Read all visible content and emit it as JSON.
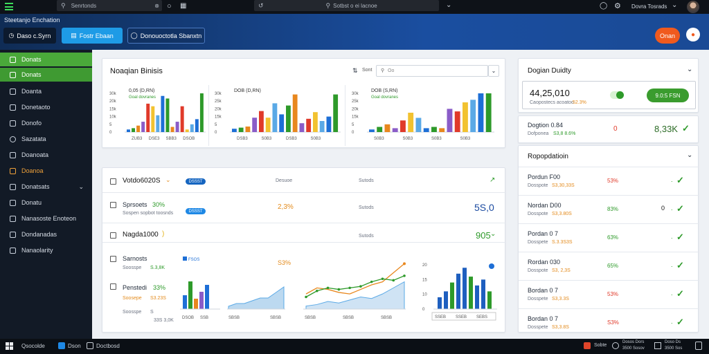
{
  "topbar": {
    "search_placeholder": "Senrtonds",
    "center_search_placeholder": "Sotbst o ei lacnoe",
    "user_name": "Dovra Tosrads"
  },
  "band": {
    "title": "Steetanjo Enchation",
    "btn_dark": "Daso c.Syrn",
    "btn_blue": "Fostr Ebaan",
    "btn_outline": "Donouoctotla Sbanxtn",
    "btn_orange": "Onan"
  },
  "sidebar": {
    "items": [
      {
        "label": "Donats"
      },
      {
        "label": "Donats"
      },
      {
        "label": "Doanta"
      },
      {
        "label": "Donetaoto"
      },
      {
        "label": "Donofo"
      },
      {
        "label": "Sazatata"
      },
      {
        "label": "Doanoata"
      },
      {
        "label": "Doanoa"
      },
      {
        "label": "Donatsats"
      },
      {
        "label": "Donatu"
      },
      {
        "label": "Nanasoste Enoteon"
      },
      {
        "label": "Dondanadas"
      },
      {
        "label": "Nanaolarity"
      }
    ]
  },
  "chart_card": {
    "title": "Noaqian Binisis",
    "sort_label": "Sont",
    "filter_placeholder": "Oo",
    "charts": [
      {
        "legend": "0,05 (D,RN)",
        "sub": "Goal dovranes",
        "x_labels": [
          "ZUB3",
          "DSE3",
          "SBB3",
          "DSOB"
        ],
        "y_ticks": [
          "30k",
          "20k",
          "15k",
          "10k",
          "5",
          "0"
        ]
      },
      {
        "legend": "DOB (D,RN)",
        "sub": "",
        "x_labels": [
          "DSB3",
          "S0B3",
          "DSB3",
          "S0B3"
        ],
        "y_ticks": [
          "30k",
          "25k",
          "20k",
          "15k",
          "5",
          "0"
        ]
      },
      {
        "legend": "DOB (S,RN)",
        "sub": "Goal dovranes",
        "x_labels": [
          "S0B3",
          "S0B3",
          "S0B3",
          "S0B3"
        ],
        "y_ticks": [
          "30k",
          "25k",
          "20k",
          "15k",
          "5",
          "0"
        ]
      }
    ]
  },
  "chart_data": [
    {
      "type": "bar",
      "series": [
        {
          "name": "",
          "values": [
            2,
            3,
            5,
            8,
            22,
            20,
            13,
            28,
            26,
            4,
            8,
            20,
            2,
            6,
            10,
            30
          ]
        }
      ],
      "ylim": [
        0,
        30
      ]
    },
    {
      "type": "bar",
      "series": [
        {
          "name": "",
          "values": [
            3,
            4,
            5,
            13,
            19,
            13,
            26,
            16,
            24,
            34,
            8,
            12,
            18,
            10,
            14,
            34
          ]
        }
      ],
      "ylim": [
        0,
        35
      ]
    },
    {
      "type": "bar",
      "series": [
        {
          "name": "",
          "values": [
            2,
            4,
            6,
            3,
            9,
            15,
            11,
            3,
            4,
            3,
            18,
            16,
            23,
            25,
            30,
            30
          ]
        }
      ],
      "ylim": [
        0,
        30
      ]
    }
  ],
  "list_card": {
    "rows": [
      {
        "title": "Votdo6020S",
        "badge": "DSSST",
        "col1": "Desuoe",
        "col2": "Sutods",
        "value": ""
      },
      {
        "title": "Sprsoets",
        "title_tag": "30%",
        "sub": "Sospen sopbot toosnds",
        "badge": "DSSST",
        "col1": "2,3%",
        "col2": "Sutods",
        "value": "5S,0"
      },
      {
        "title": "Nagda1000",
        "title_tag": "",
        "col2": "Sutods",
        "value": "905"
      }
    ],
    "mini": {
      "left_rows": [
        {
          "title": "Sarnosts",
          "sub1": "Soosspe",
          "sub2": "S.3,8K"
        },
        {
          "title": "Penstedi",
          "tag": "33%",
          "sub1": "Soosepe",
          "sub2": "S3.23S"
        },
        {
          "title": "Soosspe",
          "sub1": "S",
          "sub2": "33S 3,0K"
        }
      ],
      "bar_legend": "FSOS",
      "bar_x": [
        "DSOB",
        "SSB"
      ],
      "bar_values": [
        4,
        8,
        3,
        5,
        7,
        4,
        5,
        3,
        6,
        4,
        5
      ],
      "pct_label": "S3%",
      "area_x": [
        "SBSB",
        "SBSB"
      ],
      "area_values": [
        1,
        2,
        2,
        3,
        4,
        4,
        6,
        8
      ],
      "line_x": [
        "SBSB",
        "SBSB",
        "SBSB"
      ],
      "line_orange": [
        10,
        14,
        13,
        11,
        10,
        13,
        16,
        18,
        24,
        30
      ],
      "line_green": [
        8,
        12,
        14,
        13,
        14,
        15,
        18,
        20,
        19,
        22
      ],
      "area2_values": [
        2,
        3,
        5,
        4,
        6,
        8,
        7,
        10,
        14,
        18
      ],
      "bar2_values": [
        4,
        6,
        9,
        12,
        14,
        11,
        8,
        10,
        6
      ],
      "bar2_y": [
        "20",
        "15",
        "10",
        "0"
      ],
      "bar2_x": [
        "SSEB",
        "SSEB",
        "SEBS"
      ]
    }
  },
  "right": {
    "summary_title": "Dogian Duidty",
    "big_value": "44,25,010",
    "big_sub": "Caopostecs acoatoo",
    "big_sub_val": "52.3%",
    "green_btn": "9.0:5 FSN",
    "kpi_label": "Dogtion 0.84",
    "kpi_sub": "Dofponea",
    "kpi_sub_val": "S3,8 8.6%",
    "kpi_red": "0",
    "kpi_value": "8,33K",
    "list_title": "Ropopdatioin",
    "rows": [
      {
        "name": "Pordun F00",
        "sub": "Dosspote",
        "sub_val": "S3,30,33S",
        "pct": "53%",
        "pct_color": "red",
        "zero": ""
      },
      {
        "name": "Nordan D00",
        "sub": "Dosspote",
        "sub_val": "S3,3.80S",
        "pct": "83%",
        "pct_color": "green",
        "zero": "0"
      },
      {
        "name": "Pordan 0 7",
        "sub": "Dosspete",
        "sub_val": "S.3.3S3S",
        "pct": "63%",
        "pct_color": "green",
        "zero": ""
      },
      {
        "name": "Rordan 030",
        "sub": "Dosspote",
        "sub_val": "S3, 2,3S",
        "pct": "65%",
        "pct_color": "green",
        "zero": ""
      },
      {
        "name": "Bordan 0 7",
        "sub": "Dosspete",
        "sub_val": "S3,3.3S",
        "pct": "53%",
        "pct_color": "red",
        "zero": ""
      },
      {
        "name": "Bordan 0 7",
        "sub": "Dosspete",
        "sub_val": "S3,3.8S",
        "pct": "S3%",
        "pct_color": "red",
        "zero": ""
      }
    ]
  },
  "bottombar": {
    "start_label": "Qsocolde",
    "app1": "Dson",
    "app2": "Doctbosd",
    "tray1": "Sobte",
    "tray2_a": "Dosos Dors",
    "tray2_b": "3500 Sosov",
    "tray3_a": "Doso Ds",
    "tray3_b": "3500 Sos"
  },
  "colors": {
    "accent_green": "#4aa93a",
    "accent_blue": "#1e88e5",
    "accent_orange": "#f05a1e",
    "header_dark": "#0f2c55"
  }
}
